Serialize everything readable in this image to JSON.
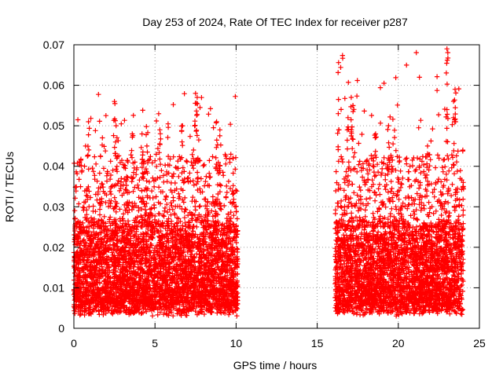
{
  "chart_data": {
    "type": "scatter",
    "title": "Day 253 of 2024, Rate Of TEC Index for receiver p287",
    "xlabel": "GPS time / hours",
    "ylabel": "ROTI / TECUs",
    "xlim": [
      0,
      25
    ],
    "ylim": [
      0,
      0.07
    ],
    "xticks": [
      0,
      5,
      10,
      15,
      20,
      25
    ],
    "xtick_labels": [
      "0",
      "5",
      "10",
      "15",
      "20",
      "25"
    ],
    "yticks": [
      0,
      0.01,
      0.02,
      0.03,
      0.04,
      0.05,
      0.06,
      0.07
    ],
    "ytick_labels": [
      "0",
      "0.01",
      "0.02",
      "0.03",
      "0.04",
      "0.05",
      "0.06",
      "0.07"
    ],
    "grid": true,
    "marker": "+",
    "marker_color": "#ff0000",
    "series": [
      {
        "name": "ROTI",
        "segments": [
          {
            "x_range": [
              0,
              10.1
            ],
            "typical_range": [
              0.005,
              0.025
            ],
            "spikes_to": 0.058
          },
          {
            "x_range": [
              16.1,
              24
            ],
            "typical_range": [
              0.005,
              0.025
            ],
            "spikes_to": 0.069
          }
        ],
        "highlights": [
          {
            "x": 0.9,
            "y": 0.051
          },
          {
            "x": 2.5,
            "y": 0.056
          },
          {
            "x": 2.6,
            "y": 0.05
          },
          {
            "x": 3.6,
            "y": 0.048
          },
          {
            "x": 4.2,
            "y": 0.048
          },
          {
            "x": 4.5,
            "y": 0.045
          },
          {
            "x": 5.3,
            "y": 0.049
          },
          {
            "x": 6.7,
            "y": 0.05
          },
          {
            "x": 7.5,
            "y": 0.058
          },
          {
            "x": 7.6,
            "y": 0.057
          },
          {
            "x": 8.8,
            "y": 0.051
          },
          {
            "x": 9.0,
            "y": 0.049
          },
          {
            "x": 9.8,
            "y": 0.042
          },
          {
            "x": 16.3,
            "y": 0.053
          },
          {
            "x": 16.9,
            "y": 0.052
          },
          {
            "x": 17.1,
            "y": 0.057
          },
          {
            "x": 17.2,
            "y": 0.055
          },
          {
            "x": 18.6,
            "y": 0.048
          },
          {
            "x": 19.4,
            "y": 0.05
          },
          {
            "x": 21.8,
            "y": 0.045
          },
          {
            "x": 23.0,
            "y": 0.069
          },
          {
            "x": 23.0,
            "y": 0.054
          },
          {
            "x": 23.5,
            "y": 0.059
          },
          {
            "x": 23.4,
            "y": 0.052
          },
          {
            "x": 24.0,
            "y": 0.036
          }
        ]
      }
    ]
  }
}
